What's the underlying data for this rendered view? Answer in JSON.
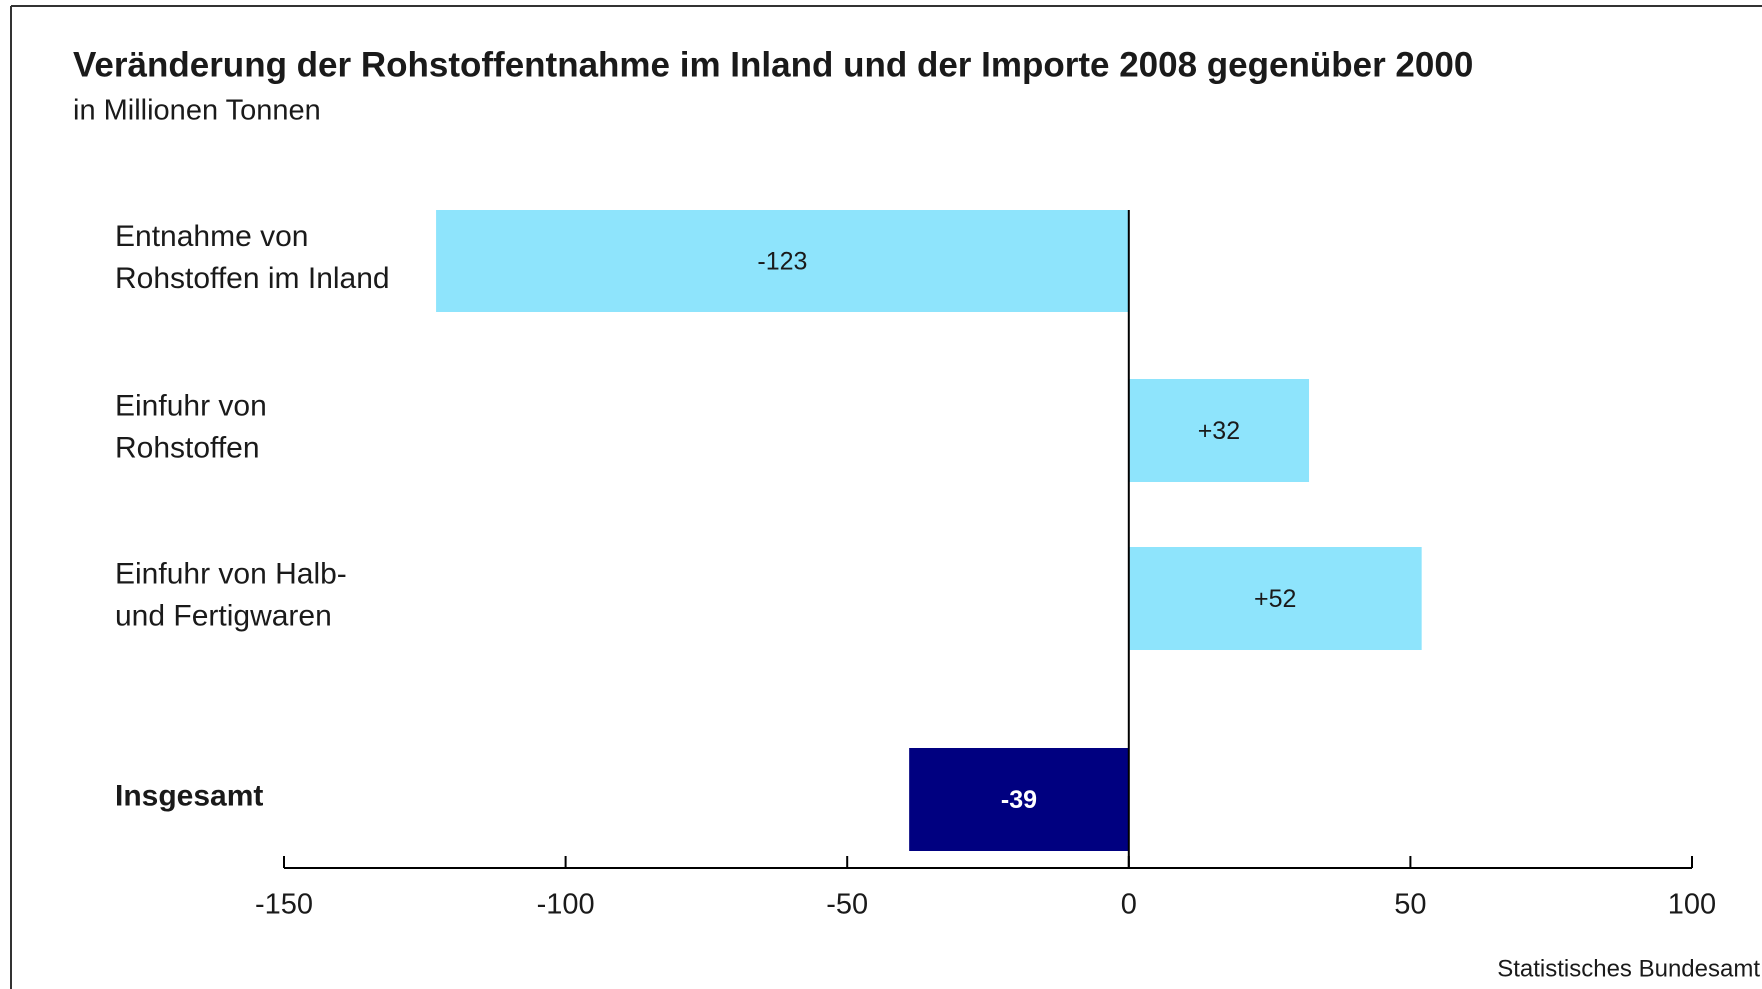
{
  "chart_data": {
    "type": "hbar",
    "title": "Veränderung der Rohstoffentnahme im Inland und der Importe 2008 gegenüber 2000",
    "subtitle": "in Millionen Tonnen",
    "categories": [
      [
        "Entnahme von",
        "Rohstoffen im Inland"
      ],
      [
        "Einfuhr von",
        "Rohstoffen"
      ],
      [
        "Einfuhr von Halb-",
        "und Fertigwaren"
      ],
      [
        "Insgesamt"
      ]
    ],
    "values": [
      -123,
      32,
      52,
      -39
    ],
    "value_labels": [
      "-123",
      "+32",
      "+52",
      "-39"
    ],
    "colors": [
      "#8ee4fc",
      "#8ee4fc",
      "#8ee4fc",
      "#000080"
    ],
    "xlim": [
      -150,
      100
    ],
    "xticks": [
      -150,
      -100,
      -50,
      0,
      50,
      100
    ],
    "source": "Statistisches Bundesamt"
  }
}
